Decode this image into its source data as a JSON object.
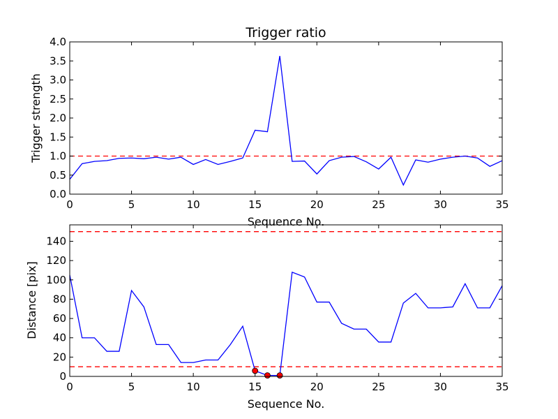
{
  "chart_data": [
    {
      "type": "line",
      "title": "Trigger ratio",
      "xlabel": "Sequence No.",
      "ylabel": "Trigger strength",
      "xlim": [
        0,
        35
      ],
      "ylim": [
        0,
        4
      ],
      "xticks": [
        0,
        5,
        10,
        15,
        20,
        25,
        30,
        35
      ],
      "yticks": [
        "0.0",
        "0.5",
        "1.0",
        "1.5",
        "2.0",
        "2.5",
        "3.0",
        "3.5",
        "4.0"
      ],
      "grid": false,
      "series": [
        {
          "name": "trigger strength",
          "color": "#0000ff",
          "x": [
            0,
            1,
            2,
            3,
            4,
            5,
            6,
            7,
            8,
            9,
            10,
            11,
            12,
            13,
            14,
            15,
            16,
            17,
            18,
            19,
            20,
            21,
            22,
            23,
            24,
            25,
            26,
            27,
            28,
            29,
            30,
            31,
            32,
            33,
            34,
            35
          ],
          "values": [
            0.39,
            0.8,
            0.86,
            0.88,
            0.94,
            0.95,
            0.93,
            0.97,
            0.92,
            0.97,
            0.78,
            0.91,
            0.78,
            0.86,
            0.95,
            1.68,
            1.64,
            3.63,
            0.86,
            0.87,
            0.53,
            0.88,
            0.97,
            0.99,
            0.85,
            0.66,
            0.97,
            0.24,
            0.9,
            0.84,
            0.92,
            0.97,
            1.0,
            0.95,
            0.73,
            0.88
          ]
        }
      ],
      "hlines": [
        {
          "y": 1.0,
          "color": "#ff0000",
          "style": "dashed"
        }
      ]
    },
    {
      "type": "line",
      "title": "",
      "xlabel": "Sequence No.",
      "ylabel": "Distance [pix]",
      "xlim": [
        0,
        35
      ],
      "ylim": [
        0,
        157
      ],
      "xticks": [
        0,
        5,
        10,
        15,
        20,
        25,
        30,
        35
      ],
      "yticks": [
        "0",
        "20",
        "40",
        "60",
        "80",
        "100",
        "120",
        "140"
      ],
      "grid": false,
      "series": [
        {
          "name": "distance",
          "color": "#0000ff",
          "x": [
            0,
            1,
            2,
            3,
            4,
            5,
            6,
            7,
            8,
            9,
            10,
            11,
            12,
            13,
            14,
            15,
            16,
            17,
            18,
            19,
            20,
            21,
            22,
            23,
            24,
            25,
            26,
            27,
            28,
            29,
            30,
            31,
            32,
            33,
            34,
            35
          ],
          "values": [
            105,
            40,
            40,
            26,
            26,
            89,
            72,
            33,
            33,
            14.4,
            14.4,
            17,
            17,
            33,
            52,
            5.8,
            1,
            1,
            108,
            103,
            77,
            77,
            55,
            49,
            49,
            35.6,
            35.6,
            76,
            86,
            71,
            71,
            72,
            96,
            71,
            71,
            94
          ]
        }
      ],
      "markers": {
        "color": "#ff0000",
        "x": [
          15,
          16,
          17
        ],
        "values": [
          5.8,
          1,
          1
        ]
      },
      "hlines": [
        {
          "y": 10,
          "color": "#ff0000",
          "style": "dashed"
        },
        {
          "y": 150,
          "color": "#ff0000",
          "style": "dashed"
        }
      ]
    }
  ]
}
